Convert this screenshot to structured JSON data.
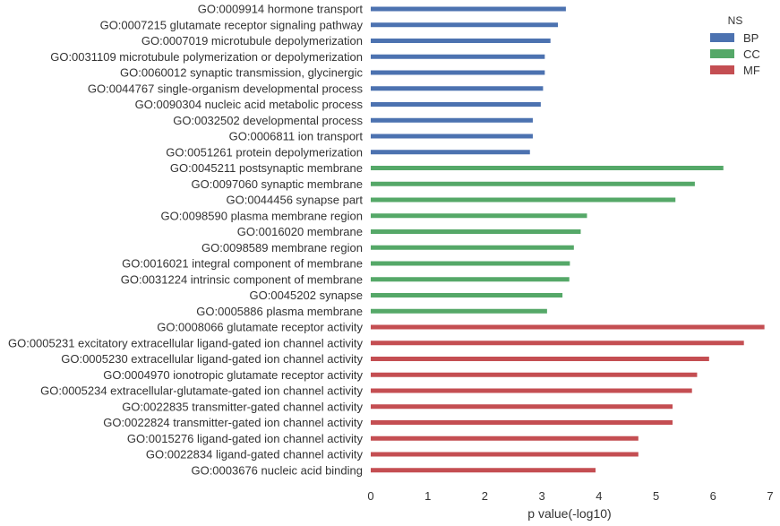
{
  "chart_data": {
    "type": "bar",
    "orientation": "horizontal",
    "xlabel": "p value(-log10)",
    "xlim": [
      0,
      7
    ],
    "xticks": [
      "0",
      "1",
      "2",
      "3",
      "4",
      "5",
      "6",
      "7"
    ],
    "grid": false,
    "legend": {
      "title": "NS",
      "placement": "top-right",
      "entries": [
        {
          "name": "BP",
          "color": "#4c72b0"
        },
        {
          "name": "CC",
          "color": "#55a868"
        },
        {
          "name": "MF",
          "color": "#c44e52"
        }
      ]
    },
    "items": [
      {
        "label": "GO:0009914 hormone transport",
        "value": 3.42,
        "ns": "BP"
      },
      {
        "label": "GO:0007215 glutamate receptor signaling pathway",
        "value": 3.28,
        "ns": "BP"
      },
      {
        "label": "GO:0007019 microtubule depolymerization",
        "value": 3.15,
        "ns": "BP"
      },
      {
        "label": "GO:0031109 microtubule polymerization or depolymerization",
        "value": 3.05,
        "ns": "BP"
      },
      {
        "label": "GO:0060012 synaptic transmission, glycinergic",
        "value": 3.05,
        "ns": "BP"
      },
      {
        "label": "GO:0044767 single-organism developmental process",
        "value": 3.02,
        "ns": "BP"
      },
      {
        "label": "GO:0090304 nucleic acid metabolic process",
        "value": 2.98,
        "ns": "BP"
      },
      {
        "label": "GO:0032502 developmental process",
        "value": 2.84,
        "ns": "BP"
      },
      {
        "label": "GO:0006811 ion transport",
        "value": 2.84,
        "ns": "BP"
      },
      {
        "label": "GO:0051261 protein depolymerization",
        "value": 2.79,
        "ns": "BP"
      },
      {
        "label": "GO:0045211 postsynaptic membrane",
        "value": 6.18,
        "ns": "CC"
      },
      {
        "label": "GO:0097060 synaptic membrane",
        "value": 5.68,
        "ns": "CC"
      },
      {
        "label": "GO:0044456 synapse part",
        "value": 5.34,
        "ns": "CC"
      },
      {
        "label": "GO:0098590 plasma membrane region",
        "value": 3.79,
        "ns": "CC"
      },
      {
        "label": "GO:0016020 membrane",
        "value": 3.68,
        "ns": "CC"
      },
      {
        "label": "GO:0098589 membrane region",
        "value": 3.56,
        "ns": "CC"
      },
      {
        "label": "GO:0016021 integral component of membrane",
        "value": 3.49,
        "ns": "CC"
      },
      {
        "label": "GO:0031224 intrinsic component of membrane",
        "value": 3.48,
        "ns": "CC"
      },
      {
        "label": "GO:0045202 synapse",
        "value": 3.36,
        "ns": "CC"
      },
      {
        "label": "GO:0005886 plasma membrane",
        "value": 3.09,
        "ns": "CC"
      },
      {
        "label": "GO:0008066 glutamate receptor activity",
        "value": 6.9,
        "ns": "MF"
      },
      {
        "label": "GO:0005231 excitatory extracellular ligand-gated ion channel activity",
        "value": 6.54,
        "ns": "MF"
      },
      {
        "label": "GO:0005230 extracellular ligand-gated ion channel activity",
        "value": 5.93,
        "ns": "MF"
      },
      {
        "label": "GO:0004970 ionotropic glutamate receptor activity",
        "value": 5.72,
        "ns": "MF"
      },
      {
        "label": "GO:0005234 extracellular-glutamate-gated ion channel activity",
        "value": 5.63,
        "ns": "MF"
      },
      {
        "label": "GO:0022835 transmitter-gated channel activity",
        "value": 5.29,
        "ns": "MF"
      },
      {
        "label": "GO:0022824 transmitter-gated ion channel activity",
        "value": 5.29,
        "ns": "MF"
      },
      {
        "label": "GO:0015276 ligand-gated ion channel activity",
        "value": 4.69,
        "ns": "MF"
      },
      {
        "label": "GO:0022834 ligand-gated channel activity",
        "value": 4.69,
        "ns": "MF"
      },
      {
        "label": "GO:0003676 nucleic acid binding",
        "value": 3.94,
        "ns": "MF"
      }
    ]
  }
}
